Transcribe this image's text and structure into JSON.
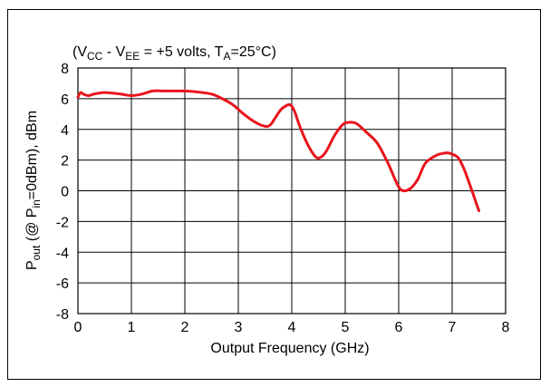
{
  "chart_data": {
    "type": "line",
    "annotation": {
      "prefix": "(V",
      "vcc_sub": "CC",
      "mid": " - V",
      "vee_sub": "EE",
      "mid2": " = +5 volts, T",
      "ta_sub": "A",
      "suffix": "=25°C)"
    },
    "xlabel": "Output Frequency (GHz)",
    "ylabel": {
      "p": "P",
      "out_sub": "out",
      "mid": " (@ P",
      "in_sub": "in",
      "suffix": "=0dBm), dBm"
    },
    "xlim": [
      0,
      8
    ],
    "ylim": [
      -8,
      8
    ],
    "x_ticks": [
      "0",
      "1",
      "2",
      "3",
      "4",
      "5",
      "6",
      "7",
      "8"
    ],
    "y_ticks": [
      "8",
      "6",
      "4",
      "2",
      "0",
      "-2",
      "-4",
      "-6",
      "-8"
    ],
    "grid": true,
    "series": [
      {
        "color": "#e8141c",
        "x": [
          0.0,
          0.05,
          0.1,
          0.2,
          0.3,
          0.5,
          0.8,
          1.0,
          1.2,
          1.4,
          1.6,
          1.8,
          2.0,
          2.2,
          2.5,
          2.7,
          2.9,
          3.1,
          3.3,
          3.5,
          3.6,
          3.7,
          3.8,
          3.9,
          3.97,
          4.05,
          4.15,
          4.3,
          4.45,
          4.55,
          4.65,
          4.8,
          4.95,
          5.05,
          5.2,
          5.4,
          5.6,
          5.8,
          5.95,
          6.05,
          6.2,
          6.35,
          6.5,
          6.7,
          6.85,
          6.95,
          7.1,
          7.2,
          7.3,
          7.5
        ],
        "y": [
          6.1,
          6.4,
          6.3,
          6.2,
          6.3,
          6.4,
          6.3,
          6.2,
          6.3,
          6.5,
          6.5,
          6.5,
          6.5,
          6.45,
          6.3,
          6.0,
          5.6,
          5.0,
          4.5,
          4.2,
          4.3,
          4.8,
          5.3,
          5.55,
          5.6,
          5.2,
          4.2,
          3.0,
          2.2,
          2.2,
          2.6,
          3.6,
          4.3,
          4.45,
          4.4,
          3.8,
          3.1,
          1.8,
          0.6,
          0.05,
          0.1,
          0.7,
          1.8,
          2.3,
          2.45,
          2.45,
          2.2,
          1.6,
          0.7,
          -1.3
        ]
      }
    ]
  }
}
